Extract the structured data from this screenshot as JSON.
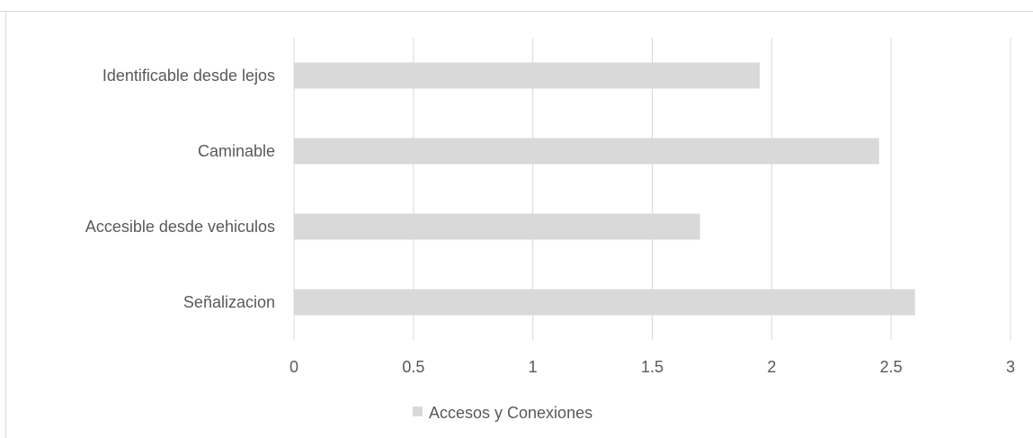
{
  "chart_data": {
    "type": "bar",
    "orientation": "horizontal",
    "categories": [
      "Identificable desde lejos",
      "Caminable",
      "Accesible desde vehiculos",
      "Señalizacion"
    ],
    "series": [
      {
        "name": "Accesos y Conexiones",
        "values": [
          1.95,
          2.45,
          1.7,
          2.6
        ]
      }
    ],
    "xlim": [
      0,
      3
    ],
    "x_ticks": [
      "0",
      "0.5",
      "1",
      "1.5",
      "2",
      "2.5",
      "3"
    ],
    "grid": "vertical",
    "legend_position": "bottom",
    "bar_color": "#d9d9d9",
    "grid_color": "#d9d9d9",
    "text_color": "#595959"
  }
}
